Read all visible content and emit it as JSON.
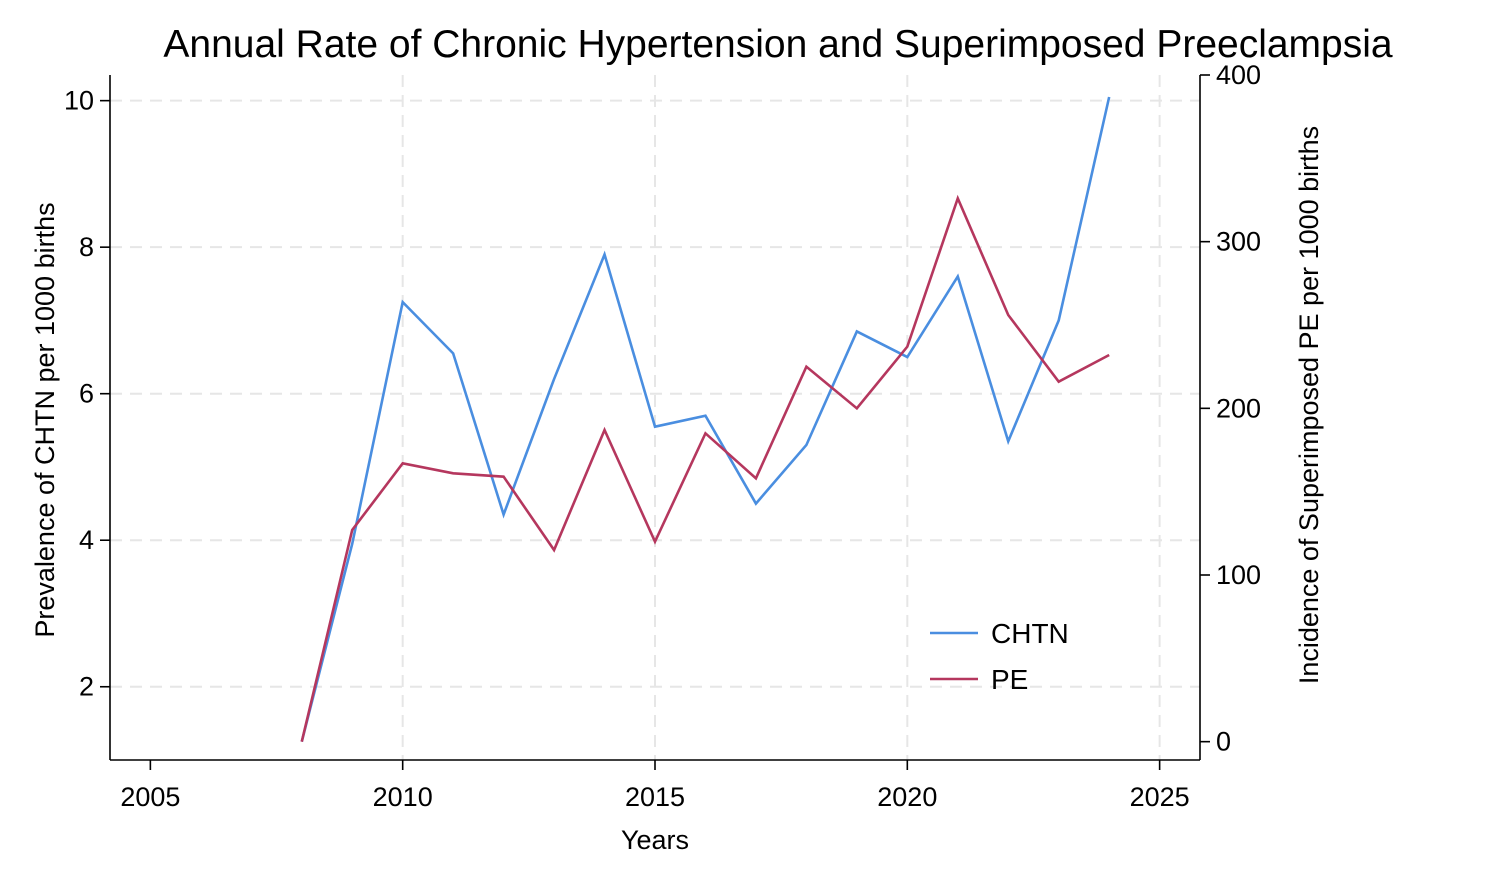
{
  "chart_data": {
    "type": "line",
    "title": "Annual Rate of Chronic Hypertension and Superimposed Preeclampsia",
    "xlabel": "Years",
    "ylabel": "Prevalence of CHTN per 1000 births",
    "y2label": "Incidence of Superimposed PE per 1000 births",
    "xlim": [
      2004.2,
      2025.8
    ],
    "ylim": [
      1.0,
      10.35
    ],
    "y2lim": [
      -11,
      400
    ],
    "xticks": [
      2005,
      2010,
      2015,
      2020,
      2025
    ],
    "yticks": [
      2,
      4,
      6,
      8,
      10
    ],
    "y2ticks": [
      0,
      100,
      200,
      300,
      400
    ],
    "x_gridlines": [
      2010,
      2015,
      2020,
      2025
    ],
    "grid": true,
    "legend_position": "bottom-right",
    "series": [
      {
        "name": "CHTN",
        "axis": "left",
        "color": "#4a8ee0",
        "x": [
          2008,
          2009,
          2010,
          2011,
          2012,
          2013,
          2014,
          2015,
          2016,
          2017,
          2018,
          2019,
          2020,
          2021,
          2022,
          2023,
          2024
        ],
        "values": [
          1.25,
          3.95,
          7.25,
          6.55,
          4.35,
          6.2,
          7.9,
          5.55,
          5.7,
          4.5,
          5.3,
          6.85,
          6.5,
          7.6,
          5.35,
          7.0,
          10.05
        ]
      },
      {
        "name": "PE",
        "axis": "right",
        "color": "#b5375e",
        "x": [
          2008,
          2009,
          2010,
          2011,
          2012,
          2013,
          2014,
          2015,
          2016,
          2017,
          2018,
          2019,
          2020,
          2021,
          2022,
          2023,
          2024
        ],
        "values": [
          0,
          127,
          167,
          161,
          159,
          115,
          187,
          120,
          185,
          158,
          225,
          200,
          237,
          326,
          256,
          216,
          232
        ]
      }
    ]
  }
}
